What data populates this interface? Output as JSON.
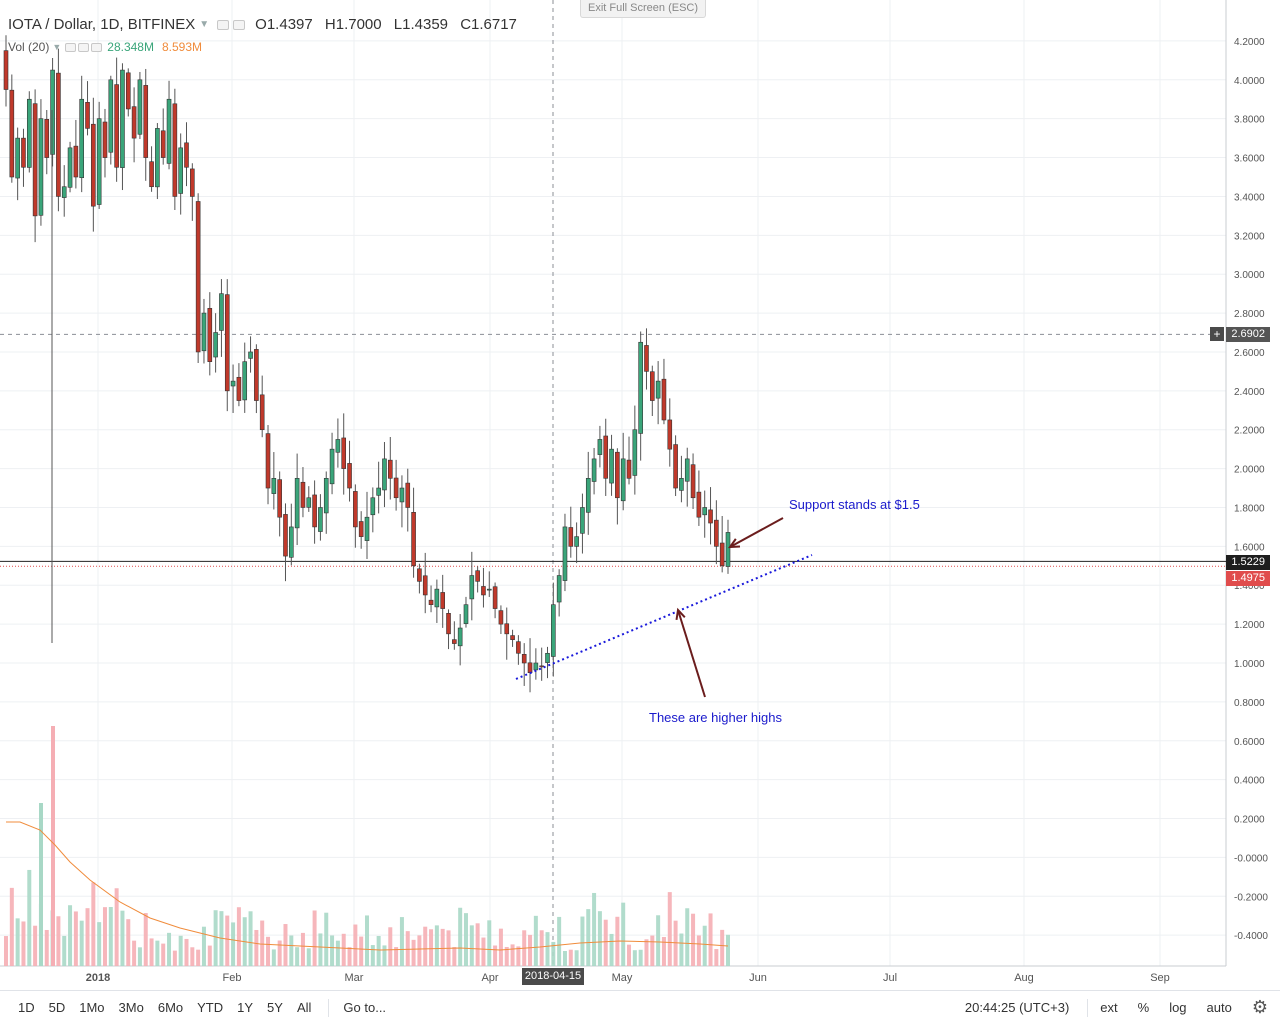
{
  "header": {
    "symbol": "IOTA / Dollar, 1D, BITFINEX",
    "open": "O1.4397",
    "high": "H1.7000",
    "low": "L1.4359",
    "close": "C1.6717",
    "vol_label": "Vol (20)",
    "vol_value": "28.348M",
    "vol_ma": "8.593M",
    "exit_fullscreen": "Exit Full Screen (ESC)"
  },
  "price_tags": {
    "current": "1.5229",
    "last": "1.4975",
    "crosshair": "2.6902",
    "plus": "+"
  },
  "crosshair_date": "2018-04-15",
  "annotations": {
    "support": "Support stands at $1.5",
    "higher": "These are higher highs"
  },
  "colors": {
    "up": "#3aa57a",
    "down": "#c0392b",
    "vol_up": "#a8d8c6",
    "vol_down": "#f5aeb4",
    "vol_ma": "#f08c3c",
    "trendline": "#1a1adb",
    "arrow": "#6b1d1d",
    "annotation_text": "#1a1acc"
  },
  "toolbar": {
    "timeframes": [
      "1D",
      "5D",
      "1Mo",
      "3Mo",
      "6Mo",
      "YTD",
      "1Y",
      "5Y",
      "All"
    ],
    "goto": "Go to...",
    "clock": "20:44:25 (UTC+3)",
    "ext": "ext",
    "percent": "%",
    "log": "log",
    "auto": "auto",
    "settings_icon": "gear-icon"
  },
  "chart_data": {
    "type": "candlestick",
    "title": "IOTA / Dollar, 1D, BITFINEX",
    "ylim": [
      -0.5,
      4.3
    ],
    "y_ticks": [
      "4.2000",
      "4.0000",
      "3.8000",
      "3.6000",
      "3.4000",
      "3.2000",
      "3.0000",
      "2.8000",
      "2.6000",
      "2.4000",
      "2.2000",
      "2.0000",
      "1.8000",
      "1.6000",
      "1.4000",
      "1.2000",
      "1.0000",
      "0.8000",
      "0.6000",
      "0.4000",
      "0.2000",
      "-0.0000",
      "-0.2000",
      "-0.4000"
    ],
    "x_ticks": [
      "2018",
      "Feb",
      "Mar",
      "Apr",
      "May",
      "Jun",
      "Jul",
      "Aug",
      "Sep"
    ],
    "horizontal_lines": [
      1.5229,
      1.4975,
      2.6902
    ],
    "trendline": {
      "from": {
        "date": "2018-04-06",
        "price": 0.92
      },
      "to": {
        "date": "2018-06-01",
        "price": 1.56
      }
    },
    "closes": [
      3.95,
      3.5,
      3.7,
      3.55,
      3.9,
      3.3,
      3.8,
      3.6,
      4.05,
      3.4,
      3.45,
      3.65,
      3.5,
      3.9,
      3.75,
      3.35,
      3.8,
      3.6,
      4.0,
      3.55,
      4.05,
      3.85,
      3.7,
      4.0,
      3.6,
      3.45,
      3.75,
      3.6,
      3.9,
      3.4,
      3.65,
      3.55,
      3.4,
      2.6,
      2.8,
      2.55,
      2.7,
      2.9,
      2.4,
      2.45,
      2.35,
      2.55,
      2.6,
      2.35,
      2.2,
      1.9,
      1.95,
      1.75,
      1.55,
      1.7,
      1.95,
      1.8,
      1.85,
      1.7,
      1.8,
      1.95,
      2.1,
      2.15,
      2.0,
      1.9,
      1.7,
      1.65,
      1.75,
      1.85,
      1.9,
      2.05,
      1.95,
      1.85,
      1.9,
      1.8,
      1.5,
      1.42,
      1.35,
      1.3,
      1.38,
      1.28,
      1.15,
      1.1,
      1.18,
      1.3,
      1.45,
      1.42,
      1.35,
      1.38,
      1.28,
      1.2,
      1.15,
      1.12,
      1.05,
      1.0,
      0.95,
      1.0,
      0.98,
      1.05,
      1.3,
      1.45,
      1.7,
      1.6,
      1.65,
      1.8,
      1.95,
      2.05,
      2.15,
      1.95,
      2.1,
      1.85,
      2.05,
      1.95,
      2.2,
      2.65,
      2.5,
      2.35,
      2.45,
      2.25,
      2.1,
      1.9,
      1.95,
      2.05,
      1.85,
      1.75,
      1.8,
      1.72,
      1.6,
      1.5,
      1.6717
    ],
    "volume_ma_visible": true
  }
}
